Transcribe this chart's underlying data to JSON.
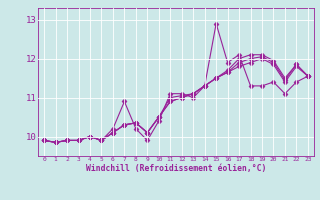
{
  "title": "",
  "xlabel": "Windchill (Refroidissement éolien,°C)",
  "xlim": [
    -0.5,
    23.5
  ],
  "ylim": [
    9.5,
    13.3
  ],
  "yticks": [
    10,
    11,
    12,
    13
  ],
  "ytick_labels": [
    "10",
    "11",
    "12",
    "13"
  ],
  "xticks": [
    0,
    1,
    2,
    3,
    4,
    5,
    6,
    7,
    8,
    9,
    10,
    11,
    12,
    13,
    14,
    15,
    16,
    17,
    18,
    19,
    20,
    21,
    22,
    23
  ],
  "background_color": "#cce8e8",
  "line_color": "#992299",
  "grid_color": "#ffffff",
  "series": [
    [
      9.9,
      9.85,
      9.9,
      9.9,
      10.0,
      9.9,
      10.2,
      10.9,
      10.2,
      9.9,
      10.4,
      11.1,
      11.1,
      11.0,
      11.3,
      12.9,
      11.9,
      12.1,
      11.3,
      11.3,
      11.4,
      11.1,
      11.4,
      11.55
    ],
    [
      9.9,
      9.85,
      9.9,
      9.9,
      10.0,
      9.9,
      10.1,
      10.3,
      10.35,
      10.1,
      10.5,
      10.9,
      11.0,
      11.1,
      11.3,
      11.5,
      11.65,
      11.8,
      11.9,
      12.0,
      11.85,
      11.4,
      11.8,
      11.55
    ],
    [
      9.9,
      9.85,
      9.9,
      9.9,
      10.0,
      9.9,
      10.1,
      10.3,
      10.35,
      10.1,
      10.5,
      10.9,
      11.0,
      11.1,
      11.3,
      11.5,
      11.65,
      11.9,
      12.0,
      12.05,
      11.9,
      11.45,
      11.85,
      11.55
    ],
    [
      9.9,
      9.85,
      9.9,
      9.9,
      10.0,
      9.9,
      10.1,
      10.3,
      10.35,
      10.1,
      10.5,
      11.0,
      11.05,
      11.1,
      11.3,
      11.5,
      11.7,
      12.0,
      12.1,
      12.1,
      11.95,
      11.5,
      11.85,
      11.55
    ]
  ],
  "marker": "D",
  "markersize": 2.5,
  "linewidth": 0.8
}
